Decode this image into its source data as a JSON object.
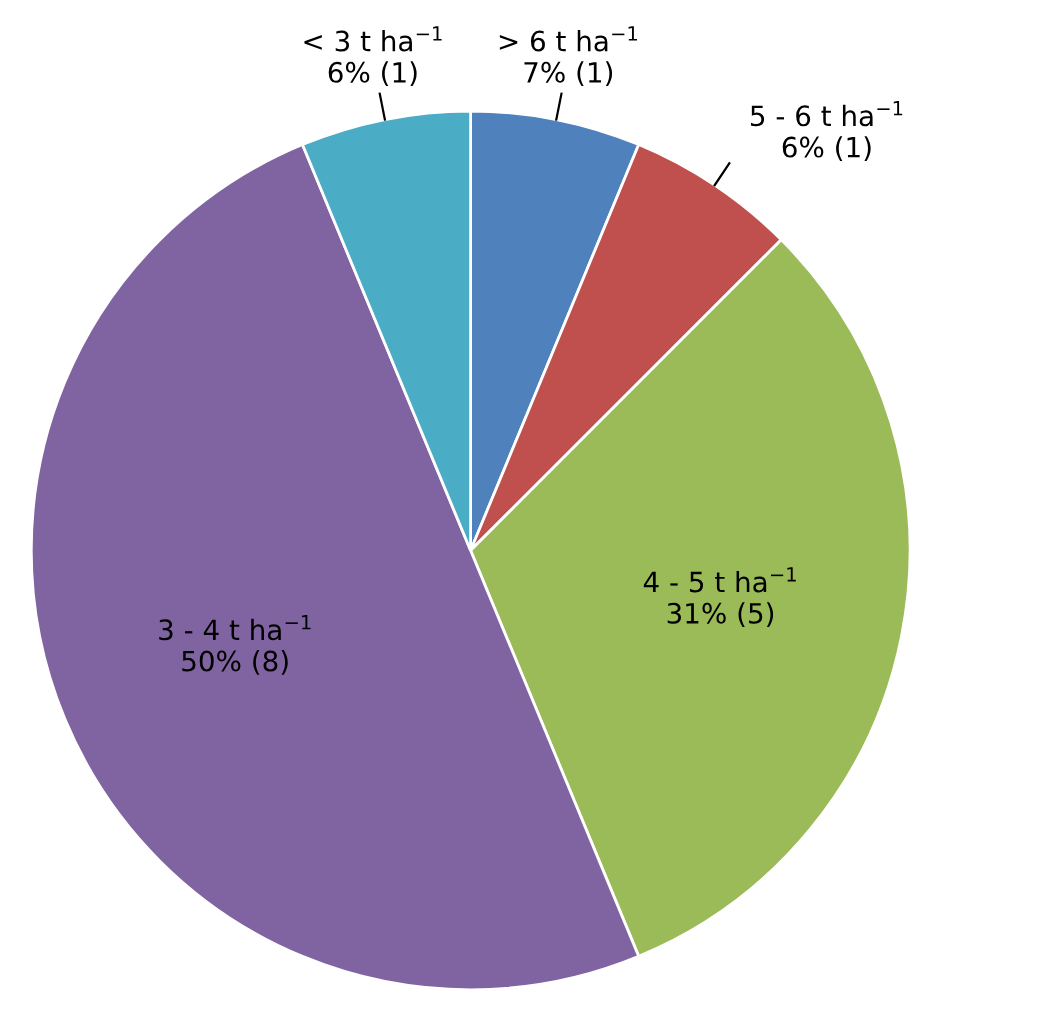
{
  "chart_data": {
    "type": "pie",
    "categories": [
      "> 6 t ha$^{−1}$",
      "5 - 6 t ha$^{−1}$",
      "4 - 5 t ha$^{−1}$",
      "3 - 4 t ha$^{−1}$",
      "< 3 t ha$^{−1}$"
    ],
    "values": [
      1,
      1,
      5,
      8,
      1
    ],
    "value_labels": [
      "7% (1)",
      "6% (1)",
      "31% (5)",
      "50% (8)",
      "6% (1)"
    ],
    "colors": [
      "#4f81bd",
      "#c0504d",
      "#9bbb59",
      "#8064a2",
      "#4bacc6"
    ],
    "legend": false
  }
}
